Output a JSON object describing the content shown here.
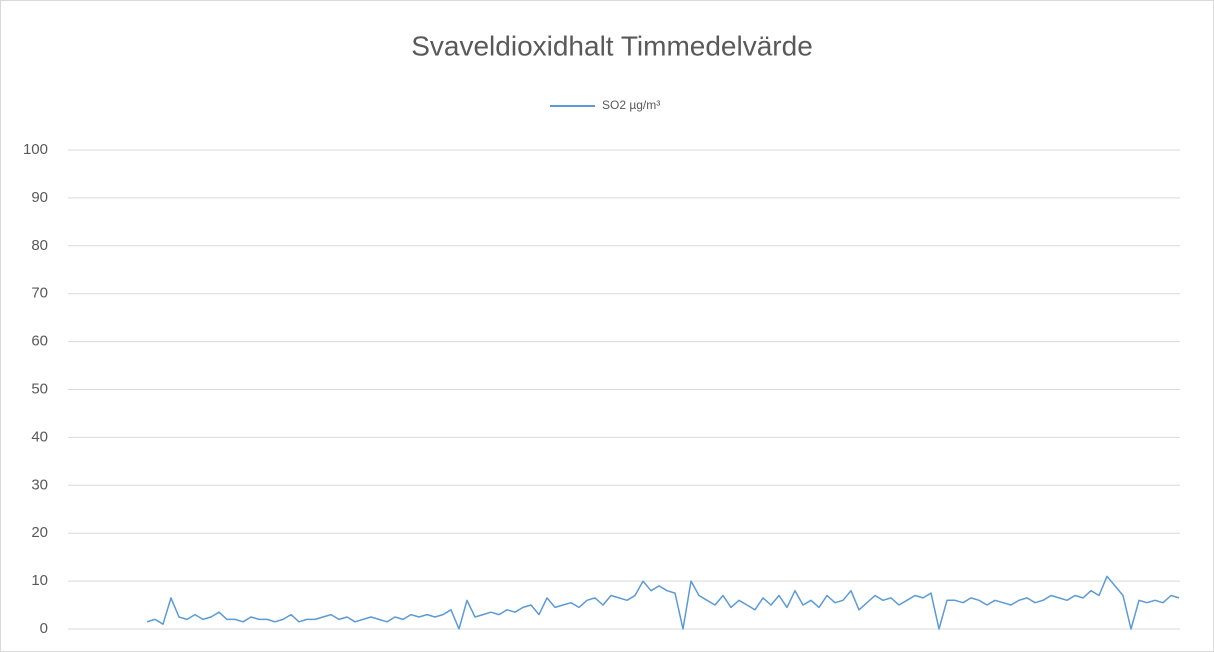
{
  "chart_data": {
    "type": "line",
    "title": "Svaveldioxidhalt Timmedelvärde",
    "series": [
      {
        "name": "SO2 µg/m³",
        "color": "#5b9bd5",
        "values": [
          1.5,
          2,
          1,
          6.5,
          2.5,
          2,
          3,
          2,
          2.5,
          3.5,
          2,
          2,
          1.5,
          2.5,
          2,
          2,
          1.5,
          2,
          3,
          1.5,
          2,
          2,
          2.5,
          3,
          2,
          2.5,
          1.5,
          2,
          2.5,
          2,
          1.5,
          2.5,
          2,
          3,
          2.5,
          3,
          2.5,
          3,
          4,
          0,
          6,
          2.5,
          3,
          3.5,
          3,
          4,
          3.5,
          4.5,
          5,
          3,
          6.5,
          4.5,
          5,
          5.5,
          4.5,
          6,
          6.5,
          5,
          7,
          6.5,
          6,
          7,
          10,
          8,
          9,
          8,
          7.5,
          0,
          10,
          7,
          6,
          5,
          7,
          4.5,
          6,
          5,
          4,
          6.5,
          5,
          7,
          4.5,
          8,
          5,
          6,
          4.5,
          7,
          5.5,
          6,
          8,
          4,
          5.5,
          7,
          6,
          6.5,
          5,
          6,
          7,
          6.5,
          7.5,
          0,
          6,
          6,
          5.5,
          6.5,
          6,
          5,
          6,
          5.5,
          5,
          6,
          6.5,
          5.5,
          6,
          7,
          6.5,
          6,
          7,
          6.5,
          8,
          7,
          11,
          9,
          7,
          0,
          6,
          5.5,
          6,
          5.5,
          7,
          6.5
        ]
      }
    ],
    "ylim": [
      0,
      100
    ],
    "yticks": [
      0,
      10,
      20,
      30,
      40,
      50,
      60,
      70,
      80,
      90,
      100
    ],
    "grid": true,
    "legend": "top"
  }
}
